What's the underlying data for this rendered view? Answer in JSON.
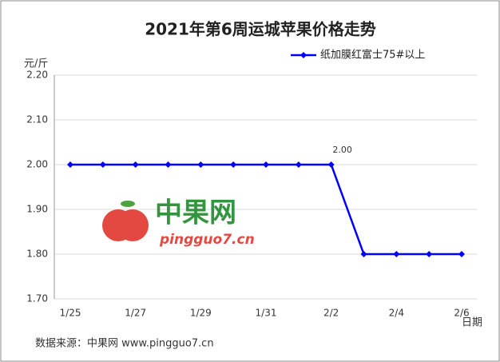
{
  "chart_data": {
    "type": "line",
    "title": "2021年第6周运城苹果价格走势",
    "y_label": "元/斤",
    "x_label": "日期",
    "categories": [
      "1/25",
      null,
      "1/27",
      null,
      "1/29",
      null,
      "1/31",
      null,
      "2/2",
      null,
      "2/4",
      null,
      "2/6"
    ],
    "series": [
      {
        "name": "纸加膜红富士75#以上",
        "color": "#0000ff",
        "values": [
          2.0,
          2.0,
          2.0,
          2.0,
          2.0,
          2.0,
          2.0,
          2.0,
          2.0,
          1.8,
          1.8,
          1.8,
          1.8
        ],
        "value_labels": [
          null,
          null,
          null,
          null,
          null,
          null,
          null,
          null,
          "2.00",
          null,
          null,
          null,
          null
        ]
      }
    ],
    "ylim": [
      1.7,
      2.2
    ],
    "yticks": [
      {
        "value": 1.7,
        "label": "1.70"
      },
      {
        "value": 1.8,
        "label": "1.80"
      },
      {
        "value": 1.9,
        "label": "1.90"
      },
      {
        "value": 2.0,
        "label": "2.00"
      },
      {
        "value": 2.1,
        "label": "2.10"
      },
      {
        "value": 2.2,
        "label": "2.20"
      }
    ],
    "grid": true,
    "source": "数据来源：中果网 www.pingguo7.cn",
    "watermark": {
      "name": "中果网",
      "url": "pingguo7.cn"
    }
  }
}
